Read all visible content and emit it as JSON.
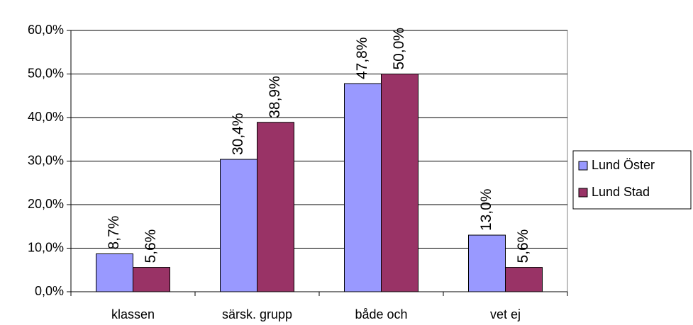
{
  "chart_data": {
    "type": "bar",
    "categories": [
      "klassen",
      "särsk. grupp",
      "både och",
      "vet ej"
    ],
    "series": [
      {
        "name": "Lund Öster",
        "color": "#9999ff",
        "values": [
          8.7,
          30.4,
          47.8,
          13.0
        ],
        "value_labels": [
          "8,7%",
          "30,4%",
          "47,8%",
          "13,0%"
        ]
      },
      {
        "name": "Lund Stad",
        "color": "#993366",
        "values": [
          5.6,
          38.9,
          50.0,
          5.6
        ],
        "value_labels": [
          "5,6%",
          "38,9%",
          "50,0%",
          "5,6%"
        ]
      }
    ],
    "ylim": [
      0,
      60
    ],
    "yticks": [
      {
        "value": 0,
        "label": "0,0%"
      },
      {
        "value": 10,
        "label": "10,0%"
      },
      {
        "value": 20,
        "label": "20,0%"
      },
      {
        "value": 30,
        "label": "30,0%"
      },
      {
        "value": 40,
        "label": "40,0%"
      },
      {
        "value": 50,
        "label": "50,0%"
      },
      {
        "value": 60,
        "label": "60,0%"
      }
    ],
    "grid": true,
    "legend": "right"
  }
}
